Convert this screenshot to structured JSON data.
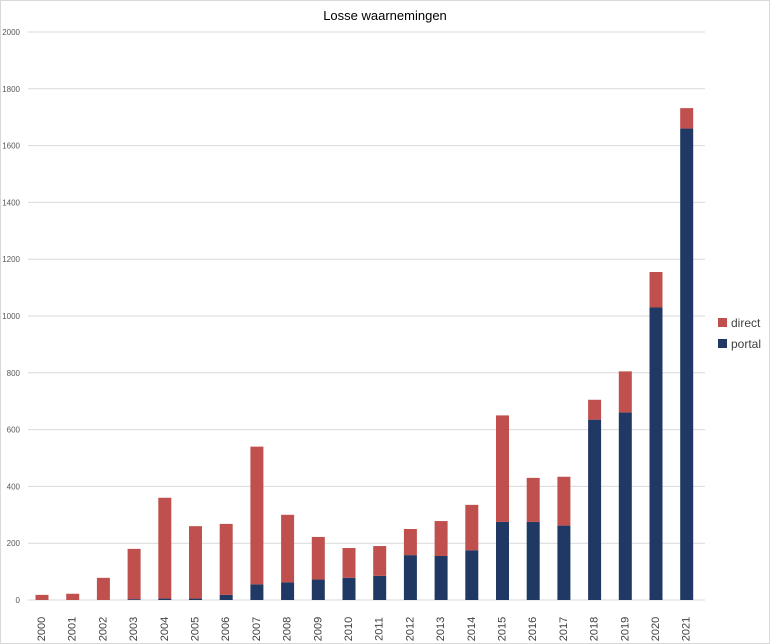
{
  "chart_data": {
    "type": "bar",
    "stacked": true,
    "title": "Losse waarnemingen",
    "xlabel": "",
    "ylabel": "",
    "ylim": [
      0,
      2000
    ],
    "yticks": [
      0,
      200,
      400,
      600,
      800,
      1000,
      1200,
      1400,
      1600,
      1800,
      2000
    ],
    "grid": true,
    "legend_position": "right",
    "categories": [
      "2000",
      "2001",
      "2002",
      "2003",
      "2004",
      "2005",
      "2006",
      "2007",
      "2008",
      "2009",
      "2010",
      "2011",
      "2012",
      "2013",
      "2014",
      "2015",
      "2016",
      "2017",
      "2018",
      "2019",
      "2020",
      "2021"
    ],
    "series": [
      {
        "name": "portal",
        "color": "#1f3864",
        "values": [
          0,
          0,
          0,
          3,
          5,
          5,
          18,
          55,
          62,
          72,
          78,
          85,
          158,
          155,
          175,
          275,
          275,
          262,
          635,
          660,
          1030,
          1660
        ]
      },
      {
        "name": "direct",
        "color": "#c0504d",
        "values": [
          18,
          22,
          78,
          177,
          355,
          255,
          250,
          485,
          238,
          150,
          105,
          105,
          92,
          123,
          160,
          375,
          155,
          172,
          70,
          145,
          125,
          72
        ]
      }
    ],
    "legend": [
      {
        "name": "direct",
        "color": "#c0504d"
      },
      {
        "name": "portal",
        "color": "#1f3864"
      }
    ]
  }
}
